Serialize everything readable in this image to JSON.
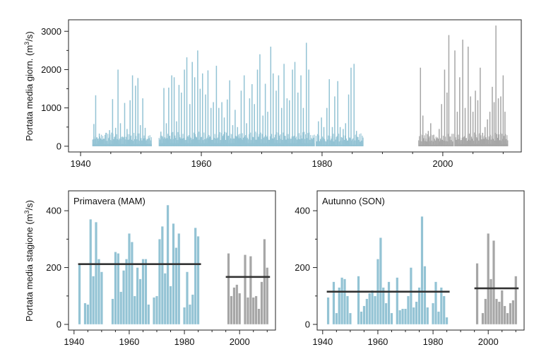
{
  "colors": {
    "historical": "#93c3d4",
    "recent": "#a6a6a6",
    "mean_line": "#333333"
  },
  "chart_data": [
    {
      "type": "bar",
      "panel": "daily",
      "title": "",
      "ylabel": "Portata media giorn. (m³/s)",
      "xlim": [
        1938,
        2013
      ],
      "ylim": [
        -150,
        3300
      ],
      "xticks": [
        "1940",
        "1960",
        "1980",
        "2000"
      ],
      "yticks": [
        "0",
        "1000",
        "2000",
        "3000"
      ],
      "series": [
        {
          "period": "1942-1951",
          "peaks": [
            [
              1942.2,
              580
            ],
            [
              1942.5,
              1330
            ],
            [
              1942.9,
              200
            ],
            [
              1943.1,
              330
            ],
            [
              1944.2,
              350
            ],
            [
              1944.8,
              420
            ],
            [
              1945.3,
              1230
            ],
            [
              1945.8,
              480
            ],
            [
              1946.2,
              2000
            ],
            [
              1946.6,
              600
            ],
            [
              1947.3,
              1130
            ],
            [
              1947.7,
              450
            ],
            [
              1948.2,
              1200
            ],
            [
              1948.6,
              1850
            ],
            [
              1949.1,
              1580
            ],
            [
              1949.5,
              1780
            ],
            [
              1949.9,
              550
            ],
            [
              1950.3,
              1250
            ],
            [
              1950.7,
              480
            ]
          ],
          "base": 60
        },
        {
          "period": "1953-1966",
          "peaks": [
            [
              1953.3,
              380
            ],
            [
              1953.8,
              1520
            ],
            [
              1954.2,
              600
            ],
            [
              1954.6,
              1530
            ],
            [
              1955.1,
              1850
            ],
            [
              1955.5,
              1800
            ],
            [
              1955.9,
              650
            ],
            [
              1956.3,
              1600
            ],
            [
              1956.7,
              1400
            ],
            [
              1957.2,
              2000
            ],
            [
              1957.6,
              2320
            ],
            [
              1958.1,
              1100
            ],
            [
              1958.5,
              2200
            ],
            [
              1958.9,
              1800
            ],
            [
              1959.4,
              2500
            ],
            [
              1959.8,
              1500
            ],
            [
              1960.2,
              1900
            ],
            [
              1960.7,
              1350
            ],
            [
              1961.1,
              1980
            ],
            [
              1961.6,
              1000
            ],
            [
              1962.0,
              1150
            ],
            [
              1962.5,
              2100
            ],
            [
              1962.9,
              1000
            ],
            [
              1963.4,
              1150
            ],
            [
              1963.8,
              750
            ],
            [
              1964.3,
              1220
            ],
            [
              1964.7,
              1720
            ],
            [
              1965.2,
              550
            ],
            [
              1965.6,
              950
            ],
            [
              1966.0,
              500
            ]
          ],
          "base": 80
        },
        {
          "period": "1966-1978",
          "peaks": [
            [
              1966.6,
              1450
            ],
            [
              1967.1,
              1850
            ],
            [
              1967.5,
              600
            ],
            [
              1968.0,
              1250
            ],
            [
              1968.4,
              1620
            ],
            [
              1968.8,
              1100
            ],
            [
              1969.3,
              2000
            ],
            [
              1969.7,
              2400
            ],
            [
              1970.2,
              800
            ],
            [
              1970.6,
              1630
            ],
            [
              1971.0,
              900
            ],
            [
              1971.5,
              2600
            ],
            [
              1971.9,
              1900
            ],
            [
              1972.4,
              1450
            ],
            [
              1972.8,
              1850
            ],
            [
              1973.3,
              1000
            ],
            [
              1973.7,
              2150
            ],
            [
              1974.2,
              1250
            ],
            [
              1974.6,
              1200
            ],
            [
              1975.1,
              2000
            ],
            [
              1975.5,
              2200
            ],
            [
              1976.0,
              1400
            ],
            [
              1976.5,
              1850
            ],
            [
              1976.9,
              1000
            ],
            [
              1977.4,
              2700
            ],
            [
              1977.8,
              2000
            ]
          ],
          "base": 80
        },
        {
          "period": "1979-1986",
          "peaks": [
            [
              1979.4,
              650
            ],
            [
              1979.9,
              750
            ],
            [
              1980.3,
              500
            ],
            [
              1980.8,
              1000
            ],
            [
              1981.2,
              1750
            ],
            [
              1981.7,
              500
            ],
            [
              1982.1,
              1300
            ],
            [
              1982.6,
              1700
            ],
            [
              1983.0,
              500
            ],
            [
              1983.5,
              450
            ],
            [
              1983.9,
              600
            ],
            [
              1984.4,
              1350
            ],
            [
              1984.8,
              2050
            ],
            [
              1985.3,
              2150
            ],
            [
              1985.7,
              400
            ]
          ],
          "base": 40
        },
        {
          "period": "1996-2001",
          "peaks": [
            [
              1996.3,
              2050
            ],
            [
              1996.7,
              800
            ],
            [
              1997.2,
              200
            ],
            [
              1997.6,
              400
            ],
            [
              1998.0,
              600
            ],
            [
              1998.5,
              300
            ],
            [
              1998.9,
              150
            ],
            [
              1999.4,
              450
            ],
            [
              1999.8,
              1100
            ],
            [
              2000.3,
              2000
            ],
            [
              2000.7,
              1400
            ],
            [
              2001.0,
              2900
            ]
          ],
          "base": 40
        },
        {
          "period": "2002-2010",
          "peaks": [
            [
              2002.0,
              2500
            ],
            [
              2002.4,
              900
            ],
            [
              2002.8,
              1800
            ],
            [
              2003.3,
              2780
            ],
            [
              2003.7,
              1000
            ],
            [
              2004.2,
              2600
            ],
            [
              2004.6,
              1300
            ],
            [
              2005.0,
              900
            ],
            [
              2005.4,
              1450
            ],
            [
              2005.8,
              1200
            ],
            [
              2006.2,
              2050
            ],
            [
              2006.6,
              350
            ],
            [
              2007.0,
              500
            ],
            [
              2007.4,
              700
            ],
            [
              2007.8,
              900
            ],
            [
              2008.2,
              1550
            ],
            [
              2008.5,
              1150
            ],
            [
              2008.8,
              3150
            ],
            [
              2009.2,
              1250
            ],
            [
              2009.6,
              1300
            ],
            [
              2010.0,
              1850
            ],
            [
              2010.3,
              900
            ]
          ],
          "base": 60
        }
      ]
    },
    {
      "type": "bar",
      "panel": "spring",
      "title": "Primavera (MAM)",
      "ylabel": "Portata media stagione (m³/s)",
      "xlim": [
        1938,
        2013
      ],
      "ylim": [
        -20,
        470
      ],
      "xticks": [
        "1940",
        "1960",
        "1980",
        "2000"
      ],
      "yticks": [
        "0",
        "200",
        "400"
      ],
      "series": [
        {
          "name": "",
          "x": [
            1942,
            1943,
            1944,
            1945,
            1946,
            1947,
            1948,
            1949,
            1950,
            1951,
            1952,
            1953,
            1954,
            1955,
            1956,
            1957,
            1958,
            1959,
            1960,
            1961,
            1962,
            1963,
            1964,
            1965,
            1966,
            1967,
            1968,
            1969,
            1970,
            1971,
            1972,
            1973,
            1974,
            1975,
            1976,
            1977,
            1978,
            1979,
            1980,
            1981,
            1982,
            1983,
            1984,
            1985
          ],
          "values": [
            210,
            null,
            75,
            70,
            370,
            170,
            360,
            230,
            185,
            null,
            null,
            null,
            90,
            255,
            250,
            115,
            190,
            230,
            320,
            290,
            100,
            200,
            160,
            230,
            230,
            70,
            null,
            95,
            100,
            300,
            345,
            180,
            420,
            135,
            355,
            270,
            320,
            null,
            60,
            185,
            70,
            105,
            340,
            310
          ]
        },
        {
          "name": "",
          "x": [
            1996,
            1997,
            1998,
            1999,
            2000,
            2001,
            2002,
            2003,
            2004,
            2005,
            2006,
            2007,
            2008,
            2009,
            2010
          ],
          "values": [
            250,
            100,
            130,
            140,
            110,
            null,
            245,
            95,
            240,
            95,
            100,
            55,
            150,
            300,
            200
          ]
        }
      ],
      "mean_lines": [
        {
          "from": 1942,
          "to": 1985.5,
          "value": 212
        },
        {
          "from": 1995.5,
          "to": 2010.5,
          "value": 167
        }
      ]
    },
    {
      "type": "bar",
      "panel": "autumn",
      "title": "Autunno (SON)",
      "xlim": [
        1938,
        2013
      ],
      "ylim": [
        -20,
        470
      ],
      "xticks": [
        "1940",
        "1960",
        "1980",
        "2000"
      ],
      "yticks": [
        "0",
        "200",
        "400"
      ],
      "series": [
        {
          "name": "",
          "x": [
            1942,
            1943,
            1944,
            1945,
            1946,
            1947,
            1948,
            1949,
            1950,
            1951,
            1952,
            1953,
            1954,
            1955,
            1956,
            1957,
            1958,
            1959,
            1960,
            1961,
            1962,
            1963,
            1964,
            1965,
            1966,
            1967,
            1968,
            1969,
            1970,
            1971,
            1972,
            1973,
            1974,
            1975,
            1976,
            1977,
            1978,
            1979,
            1980,
            1981,
            1982,
            1983,
            1984,
            1985
          ],
          "values": [
            95,
            null,
            150,
            40,
            130,
            165,
            160,
            100,
            40,
            null,
            null,
            170,
            45,
            65,
            90,
            110,
            120,
            100,
            230,
            305,
            130,
            75,
            150,
            40,
            null,
            165,
            50,
            55,
            55,
            100,
            200,
            60,
            80,
            130,
            380,
            205,
            60,
            null,
            75,
            150,
            45,
            130,
            100,
            25
          ]
        },
        {
          "name": "",
          "x": [
            1996,
            1997,
            1998,
            1999,
            2000,
            2001,
            2002,
            2003,
            2004,
            2005,
            2006,
            2007,
            2008,
            2009,
            2010
          ],
          "values": [
            215,
            null,
            40,
            90,
            320,
            160,
            295,
            90,
            80,
            120,
            65,
            40,
            75,
            85,
            170
          ]
        }
      ],
      "mean_lines": [
        {
          "from": 1942,
          "to": 1985.5,
          "value": 115
        },
        {
          "from": 1995.5,
          "to": 2010.5,
          "value": 127
        }
      ]
    }
  ]
}
